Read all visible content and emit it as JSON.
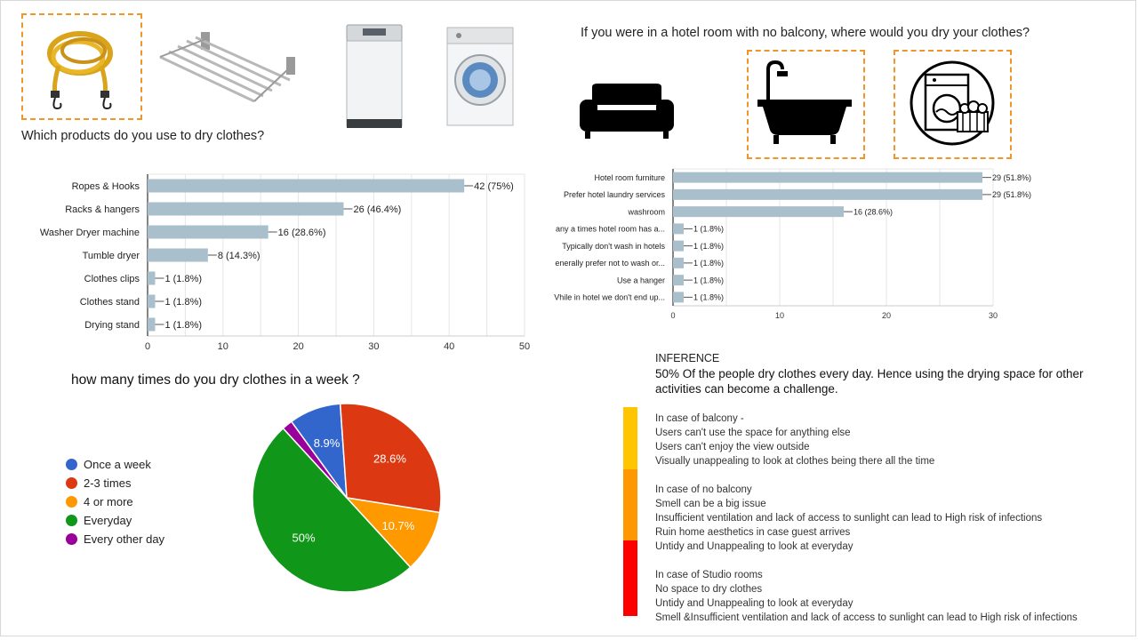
{
  "header": {
    "products_question": "Which products do you use to dry clothes?",
    "hotel_question": "If you were in a hotel room with no balcony, where would you dry your clothes?"
  },
  "icons": [
    "rope-hooks-image",
    "wall-rack-image",
    "washing-machine-image",
    "front-load-dryer-image",
    "sofa-icon",
    "bathtub-icon",
    "laundry-service-icon"
  ],
  "colors": {
    "bar": "#a9c0cc",
    "dash": "#f0952a",
    "yellow": "#ffc600",
    "orange": "#ff9800",
    "red": "#ff0000"
  },
  "chart_data": [
    {
      "type": "bar",
      "orientation": "horizontal",
      "categories": [
        "Ropes & Hooks",
        "Racks & hangers",
        "Washer Dryer machine",
        "Tumble dryer",
        "Clothes clips",
        "Clothes stand",
        "Drying stand"
      ],
      "values": [
        42,
        26,
        16,
        8,
        1,
        1,
        1
      ],
      "data_labels": [
        "42 (75%)",
        "26 (46.4%)",
        "16 (28.6%)",
        "8 (14.3%)",
        "1 (1.8%)",
        "1 (1.8%)",
        "1 (1.8%)"
      ],
      "xlim": [
        0,
        50
      ],
      "xticks": [
        0,
        10,
        20,
        30,
        40,
        50
      ],
      "grid": true
    },
    {
      "type": "bar",
      "orientation": "horizontal",
      "categories": [
        "Hotel room furniture",
        "Prefer hotel laundry services",
        "washroom",
        "any a times hotel room has a...",
        "Typically don't wash in hotels",
        "enerally prefer not to wash or...",
        "Use a hanger",
        "Vhile in hotel we don't end up..."
      ],
      "values": [
        29,
        29,
        16,
        1,
        1,
        1,
        1,
        1
      ],
      "data_labels": [
        "29 (51.8%)",
        "29 (51.8%)",
        "16 (28.6%)",
        "1 (1.8%)",
        "1 (1.8%)",
        "1 (1.8%)",
        "1 (1.8%)",
        "1 (1.8%)"
      ],
      "xlim": [
        0,
        30
      ],
      "xticks": [
        0,
        10,
        20,
        30
      ],
      "grid": true
    },
    {
      "type": "pie",
      "title": "how many times do you dry clothes in a week ?",
      "legend_position": "left",
      "slices": [
        {
          "name": "Once a week",
          "value": 8.9,
          "label": "8.9%",
          "color": "#3366cc"
        },
        {
          "name": "2-3 times",
          "value": 28.6,
          "label": "28.6%",
          "color": "#dc3912"
        },
        {
          "name": "4 or more",
          "value": 10.7,
          "label": "10.7%",
          "color": "#ff9900"
        },
        {
          "name": "Everyday",
          "value": 50,
          "label": "50%",
          "color": "#109618"
        },
        {
          "name": "Every other day",
          "value": 1.8,
          "label": "",
          "color": "#990099"
        }
      ]
    }
  ],
  "inference": {
    "heading": "INFERENCE",
    "main": "50% Of the people dry clothes every day. Hence using the drying space for other activities can become a challenge.",
    "groups": [
      {
        "color": "#ffc600",
        "lines": [
          "In case of balcony -",
          "Users can't use the space for anything else",
          "Users can't enjoy the view outside",
          "Visually  unappealing to look at clothes being there all the time"
        ]
      },
      {
        "color": "#ff9800",
        "lines": [
          "In case of no balcony",
          "Smell can be a big issue",
          "Insufficient  ventilation and lack of access to sunlight  can lead to High risk of infections",
          "Ruin home aesthetics  in case guest arrives",
          "Untidy and Unappealing to look at everyday"
        ]
      },
      {
        "color": "#ff0000",
        "lines": [
          "In case of Studio rooms",
          "No space to dry clothes",
          "Untidy and Unappealing to look at everyday",
          "Smell &Insufficient  ventilation and lack of access to sunlight  can lead to High risk of infections"
        ]
      }
    ]
  }
}
